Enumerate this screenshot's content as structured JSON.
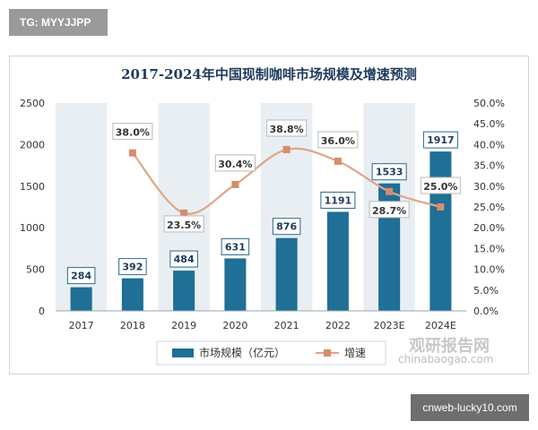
{
  "top_tag": "TG: MYYJJPP",
  "bottom_tag": "cnweb-lucky10.com",
  "watermark": {
    "logo": "观研报告网",
    "url": "chinabaogao.com"
  },
  "colors": {
    "bar": "#1f6f96",
    "line": "#e0a58a",
    "marker": "#d98b6a",
    "plot_bg_stripe": "#e9eef3",
    "label_border": "#2a6a8a"
  },
  "chart_data": {
    "type": "bar",
    "title": "2017-2024年中国现制咖啡市场规模及增速预测",
    "categories": [
      "2017",
      "2018",
      "2019",
      "2020",
      "2021",
      "2022",
      "2023E",
      "2024E"
    ],
    "series": [
      {
        "name": "市场规模（亿元）",
        "type": "bar",
        "axis": "left",
        "values": [
          284,
          392,
          484,
          631,
          876,
          1191,
          1533,
          1917
        ],
        "labels": [
          "284",
          "392",
          "484",
          "631",
          "876",
          "1191",
          "1533",
          "1917"
        ]
      },
      {
        "name": "增速",
        "type": "line",
        "axis": "right",
        "values": [
          null,
          38.0,
          23.5,
          30.4,
          38.8,
          36.0,
          28.7,
          25.0
        ],
        "labels": [
          "",
          "38.0%",
          "23.5%",
          "30.4%",
          "38.8%",
          "36.0%",
          "28.7%",
          "25.0%"
        ]
      }
    ],
    "y_left": {
      "min": 0,
      "max": 2500,
      "ticks": [
        "0",
        "500",
        "1000",
        "1500",
        "2000",
        "2500"
      ]
    },
    "y_right": {
      "min": 0,
      "max": 50,
      "ticks": [
        "0.0%",
        "5.0%",
        "10.0%",
        "15.0%",
        "20.0%",
        "25.0%",
        "30.0%",
        "35.0%",
        "40.0%",
        "45.0%",
        "50.0%"
      ]
    },
    "legend_position": "bottom",
    "grid": false
  }
}
